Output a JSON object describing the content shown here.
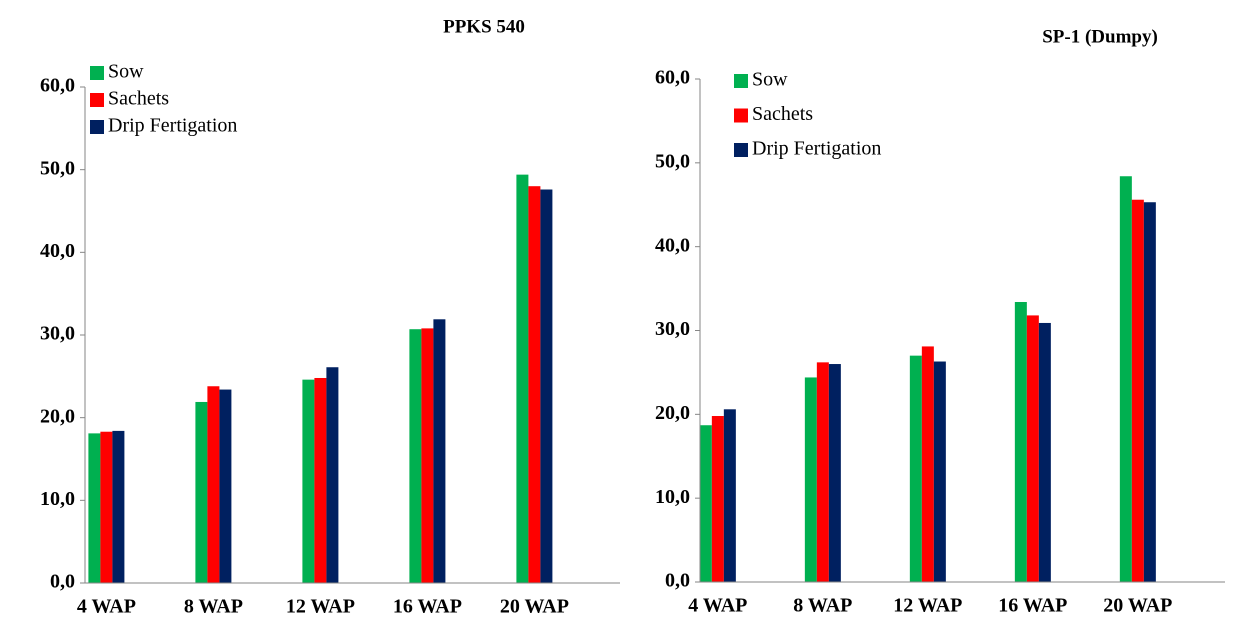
{
  "chart_data": [
    {
      "type": "bar",
      "title": "PPKS 540",
      "categories": [
        "4 WAP",
        "8 WAP",
        "12 WAP",
        "16 WAP",
        "20 WAP"
      ],
      "series": [
        {
          "name": "Sow",
          "color": "#00b050",
          "values": [
            18.1,
            21.9,
            24.6,
            30.7,
            49.4
          ]
        },
        {
          "name": "Sachets",
          "color": "#ff0000",
          "values": [
            18.3,
            23.8,
            24.8,
            30.8,
            48.0
          ]
        },
        {
          "name": "Drip Fertigation",
          "color": "#002060",
          "values": [
            18.4,
            23.4,
            26.1,
            31.9,
            47.6
          ]
        }
      ],
      "ylim": [
        0,
        60
      ],
      "yticks": [
        {
          "value": 0,
          "label": "0,0"
        },
        {
          "value": 10,
          "label": "10,0"
        },
        {
          "value": 20,
          "label": "20,0"
        },
        {
          "value": 30,
          "label": "30,0"
        },
        {
          "value": 40,
          "label": "40,0"
        },
        {
          "value": 50,
          "label": "50,0"
        },
        {
          "value": 60,
          "label": "60,0"
        }
      ],
      "legend": "upper left"
    },
    {
      "type": "bar",
      "title": "SP-1 (Dumpy)",
      "categories": [
        "4 WAP",
        "8 WAP",
        "12 WAP",
        "16 WAP",
        "20 WAP"
      ],
      "series": [
        {
          "name": "Sow",
          "color": "#00b050",
          "values": [
            18.7,
            24.4,
            27.0,
            33.4,
            48.4
          ]
        },
        {
          "name": "Sachets",
          "color": "#ff0000",
          "values": [
            19.8,
            26.2,
            28.1,
            31.8,
            45.6
          ]
        },
        {
          "name": "Drip Fertigation",
          "color": "#002060",
          "values": [
            20.6,
            26.0,
            26.3,
            30.9,
            45.3
          ]
        }
      ],
      "ylim": [
        0,
        60
      ],
      "yticks": [
        {
          "value": 0,
          "label": "0,0"
        },
        {
          "value": 10,
          "label": "10,0"
        },
        {
          "value": 20,
          "label": "20,0"
        },
        {
          "value": 30,
          "label": "30,0"
        },
        {
          "value": 40,
          "label": "40,0"
        },
        {
          "value": 50,
          "label": "50,0"
        },
        {
          "value": 60,
          "label": "60,0"
        }
      ],
      "legend": "upper left"
    }
  ]
}
